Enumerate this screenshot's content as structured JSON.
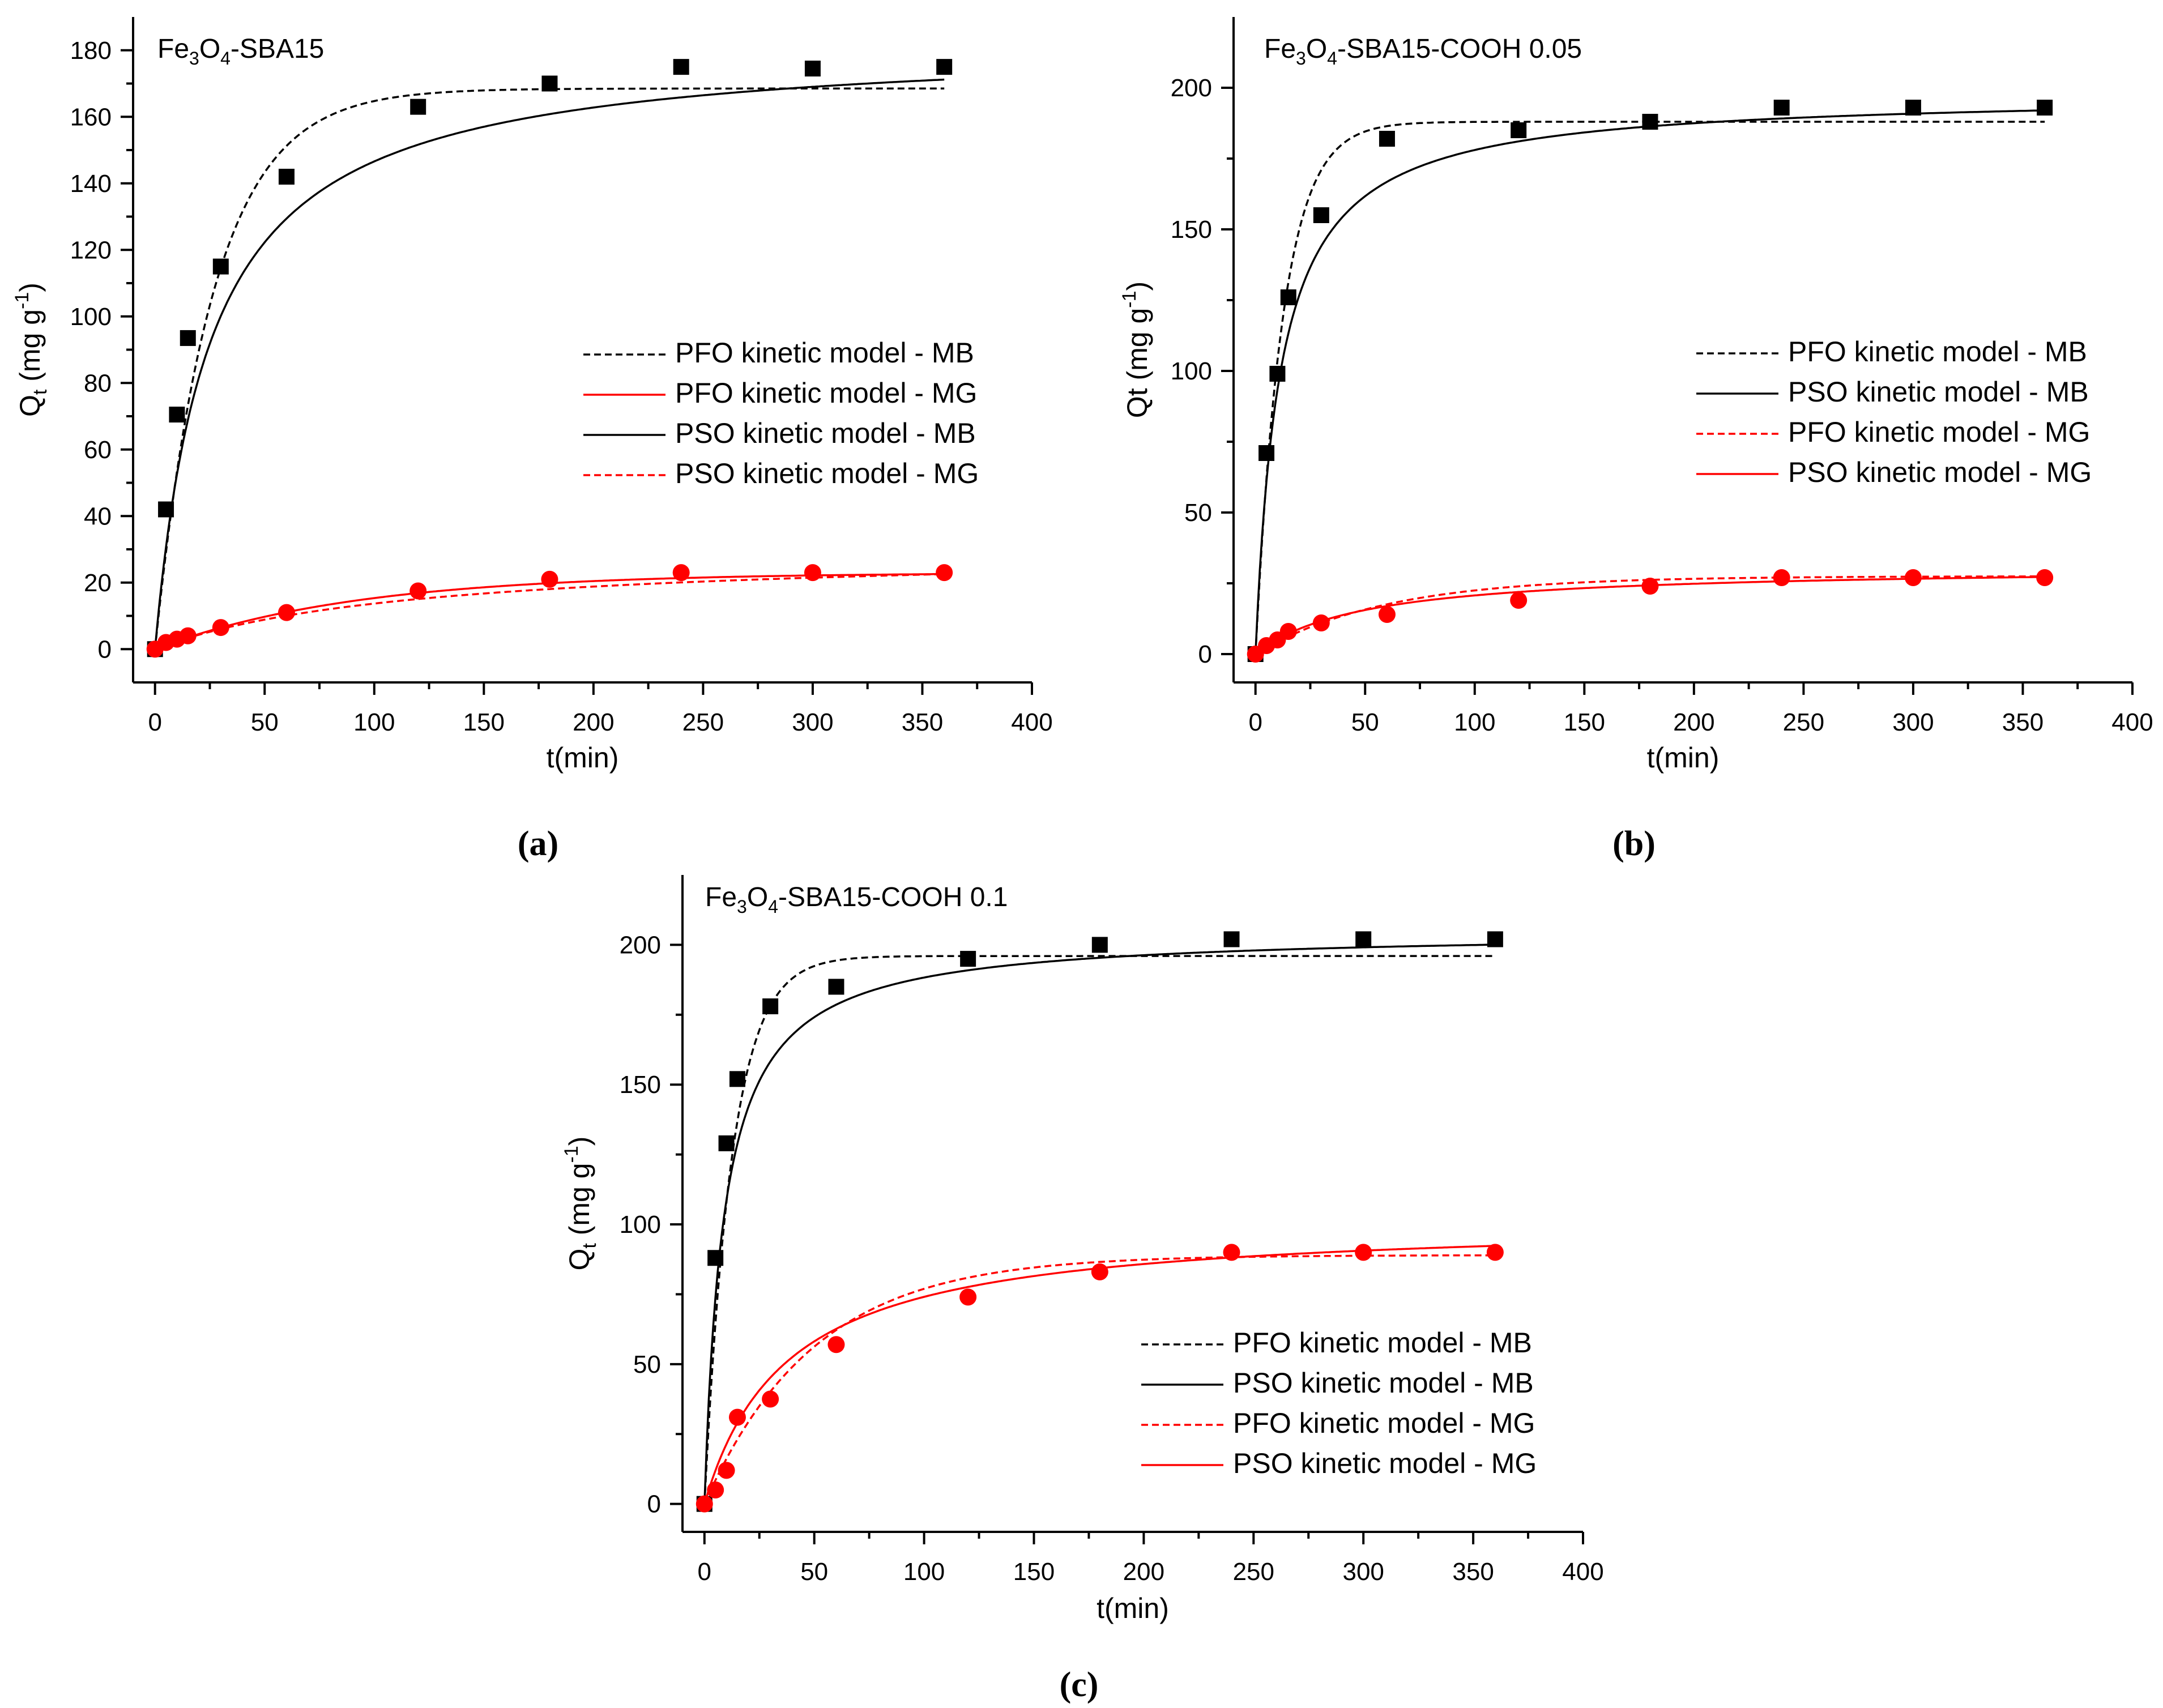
{
  "chart_data": [
    {
      "type": "scatter",
      "panel_label": "(a)",
      "title_parts": {
        "base": "Fe",
        "sub1": "3",
        "mid": "O",
        "sub2": "4",
        "rest": "-SBA15"
      },
      "xlabel": "t(min)",
      "ylabel_parts": {
        "base": "Q",
        "sub": "t",
        "unit_pre": " (mg g",
        "sup": "-1",
        "unit_post": ")"
      },
      "xlim": [
        -10,
        400
      ],
      "ylim": [
        -10,
        190
      ],
      "xticks": [
        0,
        50,
        100,
        150,
        200,
        250,
        300,
        350,
        400
      ],
      "yticks": [
        0,
        20,
        40,
        60,
        80,
        100,
        120,
        140,
        160,
        180
      ],
      "legend": [
        {
          "label": "PFO kinetic model - MB",
          "color": "#000000",
          "dash": true
        },
        {
          "label": "PFO kinetic model - MG",
          "color": "#ff0000",
          "dash": false
        },
        {
          "label": "PSO kinetic model - MB",
          "color": "#000000",
          "dash": false
        },
        {
          "label": "PSO kinetic model - MG",
          "color": "#ff0000",
          "dash": true
        }
      ],
      "series": [
        {
          "name": "MB data",
          "marker": "square",
          "color": "#000000",
          "x": [
            0,
            5,
            10,
            15,
            30,
            60,
            120,
            180,
            240,
            300,
            360
          ],
          "y": [
            0,
            42,
            70.5,
            93.5,
            115,
            142,
            163,
            170,
            175,
            174.5,
            175
          ]
        },
        {
          "name": "MG data",
          "marker": "circle",
          "color": "#ff0000",
          "x": [
            0,
            5,
            10,
            15,
            30,
            60,
            120,
            180,
            240,
            300,
            360
          ],
          "y": [
            0,
            2,
            3,
            4,
            6.5,
            11,
            17.5,
            21,
            23,
            23,
            23
          ]
        }
      ],
      "models": [
        {
          "name": "PFO kinetic model - MB",
          "kind": "pfo",
          "qe": 168.5,
          "k": 0.038,
          "color": "#000000",
          "dash": true
        },
        {
          "name": "PSO kinetic model - MB",
          "kind": "pso",
          "qe": 183,
          "k": 0.00022,
          "color": "#000000",
          "dash": false
        },
        {
          "name": "PFO kinetic model - MG",
          "kind": "pfo",
          "qe": 23,
          "k": 0.011,
          "color": "#ff0000",
          "dash": false
        },
        {
          "name": "PSO kinetic model - MG",
          "kind": "pso",
          "qe": 30,
          "k": 0.00028,
          "color": "#ff0000",
          "dash": true
        }
      ]
    },
    {
      "type": "scatter",
      "panel_label": "(b)",
      "title_parts": {
        "base": "Fe",
        "sub1": "3",
        "mid": "O",
        "sub2": "4",
        "rest": "-SBA15-COOH 0.05"
      },
      "xlabel": "t(min)",
      "ylabel_parts": {
        "base": "Qt",
        "sub": "",
        "unit_pre": " (mg g",
        "sup": "-1",
        "unit_post": ")"
      },
      "xlim": [
        -10,
        400
      ],
      "ylim": [
        -10,
        225
      ],
      "xticks": [
        0,
        50,
        100,
        150,
        200,
        250,
        300,
        350,
        400
      ],
      "yticks": [
        0,
        50,
        100,
        150,
        200
      ],
      "legend": [
        {
          "label": "PFO kinetic model - MB",
          "color": "#000000",
          "dash": true
        },
        {
          "label": "PSO kinetic model - MB",
          "color": "#000000",
          "dash": false
        },
        {
          "label": "PFO kinetic model - MG",
          "color": "#ff0000",
          "dash": true
        },
        {
          "label": "PSO kinetic model - MG",
          "color": "#ff0000",
          "dash": false
        }
      ],
      "series": [
        {
          "name": "MB data",
          "marker": "square",
          "color": "#000000",
          "x": [
            0,
            5,
            10,
            15,
            30,
            60,
            120,
            180,
            240,
            300,
            360
          ],
          "y": [
            0,
            71,
            99,
            126,
            155,
            182,
            185,
            188,
            193,
            193,
            193
          ]
        },
        {
          "name": "MG data",
          "marker": "circle",
          "color": "#ff0000",
          "x": [
            0,
            5,
            10,
            15,
            30,
            60,
            120,
            180,
            240,
            300,
            360
          ],
          "y": [
            0,
            3,
            5,
            8,
            11,
            14,
            19,
            24,
            27,
            27,
            27
          ]
        }
      ],
      "models": [
        {
          "name": "PFO kinetic model - MB",
          "kind": "pfo",
          "qe": 188,
          "k": 0.08,
          "color": "#000000",
          "dash": true
        },
        {
          "name": "PSO kinetic model - MB",
          "kind": "pso",
          "qe": 198,
          "k": 0.00045,
          "color": "#000000",
          "dash": false
        },
        {
          "name": "PFO kinetic model - MG",
          "kind": "pfo",
          "qe": 27.5,
          "k": 0.017,
          "color": "#ff0000",
          "dash": true
        },
        {
          "name": "PSO kinetic model - MG",
          "kind": "pso",
          "qe": 31,
          "k": 0.00065,
          "color": "#ff0000",
          "dash": false
        }
      ]
    },
    {
      "type": "scatter",
      "panel_label": "(c)",
      "title_parts": {
        "base": "Fe",
        "sub1": "3",
        "mid": "O",
        "sub2": "4",
        "rest": "-SBA15-COOH 0.1"
      },
      "xlabel": "t(min)",
      "ylabel_parts": {
        "base": "Q",
        "sub": "t",
        "unit_pre": " (mg g",
        "sup": "-1",
        "unit_post": ")"
      },
      "xlim": [
        -10,
        400
      ],
      "ylim": [
        -10,
        225
      ],
      "xticks": [
        0,
        50,
        100,
        150,
        200,
        250,
        300,
        350,
        400
      ],
      "yticks": [
        0,
        50,
        100,
        150,
        200
      ],
      "legend": [
        {
          "label": "PFO kinetic model - MB",
          "color": "#000000",
          "dash": true
        },
        {
          "label": "PSO kinetic model - MB",
          "color": "#000000",
          "dash": false
        },
        {
          "label": "PFO kinetic model - MG",
          "color": "#ff0000",
          "dash": true
        },
        {
          "label": "PSO kinetic model - MG",
          "color": "#ff0000",
          "dash": false
        }
      ],
      "series": [
        {
          "name": "MB data",
          "marker": "square",
          "color": "#000000",
          "x": [
            0,
            5,
            10,
            15,
            30,
            60,
            120,
            180,
            240,
            300,
            360
          ],
          "y": [
            0,
            88,
            129,
            152,
            178,
            185,
            195,
            200,
            202,
            202,
            202
          ]
        },
        {
          "name": "MG data",
          "marker": "circle",
          "color": "#ff0000",
          "x": [
            0,
            5,
            10,
            15,
            30,
            60,
            120,
            180,
            240,
            300,
            360
          ],
          "y": [
            0,
            5,
            12,
            31,
            37.5,
            57,
            74,
            83,
            90,
            90,
            90
          ]
        }
      ],
      "models": [
        {
          "name": "PFO kinetic model - MB",
          "kind": "pfo",
          "qe": 196,
          "k": 0.08,
          "color": "#000000",
          "dash": true
        },
        {
          "name": "PSO kinetic model - MB",
          "kind": "pso",
          "qe": 205,
          "k": 0.00055,
          "color": "#000000",
          "dash": false
        },
        {
          "name": "PFO kinetic model - MG",
          "kind": "pfo",
          "qe": 89,
          "k": 0.02,
          "color": "#ff0000",
          "dash": true
        },
        {
          "name": "PSO kinetic model - MG",
          "kind": "pso",
          "qe": 102,
          "k": 0.00026,
          "color": "#ff0000",
          "dash": false
        }
      ]
    }
  ]
}
